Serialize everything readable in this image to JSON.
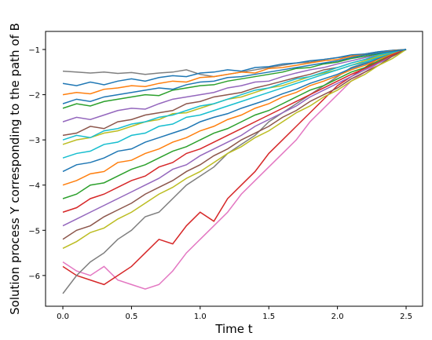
{
  "chart_data": {
    "type": "line",
    "xlabel": "Time t",
    "ylabel": "Solution process Y corresponding to the path of B",
    "xlim": [
      -0.126,
      2.62
    ],
    "ylim": [
      -6.68,
      -0.6
    ],
    "xticks": [
      {
        "value": 0,
        "label": "0.0"
      },
      0.5,
      {
        "value": 1,
        "label": "1.0"
      },
      1.5,
      {
        "value": 2,
        "label": "2.0"
      },
      2.5
    ],
    "yticks": [
      {
        "value": -6,
        "label": "−6"
      },
      {
        "value": -5,
        "label": "−5"
      },
      {
        "value": -4,
        "label": "−4"
      },
      {
        "value": -3,
        "label": "−3"
      },
      {
        "value": -2,
        "label": "−2"
      },
      {
        "value": -1,
        "label": "−1"
      }
    ],
    "x": [
      0,
      0.1,
      0.2,
      0.3,
      0.4,
      0.5,
      0.6,
      0.7,
      0.8,
      0.9,
      1.0,
      1.1,
      1.2,
      1.3,
      1.4,
      1.5,
      1.6,
      1.7,
      1.8,
      1.9,
      2.0,
      2.1,
      2.2,
      2.3,
      2.4,
      2.5
    ],
    "series": [
      {
        "color": "#7f7f7f",
        "values": [
          -1.48,
          -1.5,
          -1.52,
          -1.5,
          -1.53,
          -1.51,
          -1.55,
          -1.52,
          -1.5,
          -1.45,
          -1.55,
          -1.6,
          -1.55,
          -1.5,
          -1.45,
          -1.4,
          -1.35,
          -1.3,
          -1.28,
          -1.22,
          -1.18,
          -1.15,
          -1.1,
          -1.05,
          -1.02,
          -1.0
        ]
      },
      {
        "color": "#e377c2",
        "values": [
          -5.7,
          -5.9,
          -6.0,
          -5.8,
          -6.1,
          -6.2,
          -6.3,
          -6.2,
          -5.9,
          -5.5,
          -5.2,
          -4.9,
          -4.6,
          -4.2,
          -3.9,
          -3.6,
          -3.3,
          -3.0,
          -2.6,
          -2.3,
          -2.0,
          -1.7,
          -1.5,
          -1.3,
          -1.1,
          -1.0
        ]
      },
      {
        "color": "#d62728",
        "values": [
          -5.8,
          -6.0,
          -6.1,
          -6.2,
          -6.0,
          -5.8,
          -5.5,
          -5.2,
          -5.3,
          -4.9,
          -4.6,
          -4.8,
          -4.3,
          -4.0,
          -3.7,
          -3.3,
          -3.0,
          -2.7,
          -2.4,
          -2.1,
          -1.8,
          -1.6,
          -1.4,
          -1.2,
          -1.1,
          -1.0
        ]
      },
      {
        "color": "#7f7f7f",
        "values": [
          -6.4,
          -6.0,
          -5.7,
          -5.5,
          -5.2,
          -5.0,
          -4.7,
          -4.6,
          -4.3,
          -4.0,
          -3.8,
          -3.6,
          -3.3,
          -3.1,
          -2.9,
          -2.6,
          -2.4,
          -2.2,
          -2.0,
          -1.8,
          -1.6,
          -1.4,
          -1.3,
          -1.15,
          -1.05,
          -1.0
        ]
      },
      {
        "color": "#1f77b4",
        "values": [
          -1.75,
          -1.8,
          -1.72,
          -1.78,
          -1.7,
          -1.65,
          -1.7,
          -1.62,
          -1.58,
          -1.6,
          -1.52,
          -1.5,
          -1.45,
          -1.48,
          -1.4,
          -1.38,
          -1.32,
          -1.3,
          -1.25,
          -1.22,
          -1.18,
          -1.12,
          -1.1,
          -1.05,
          -1.02,
          -1.0
        ]
      },
      {
        "color": "#ff7f0e",
        "values": [
          -2.0,
          -1.95,
          -1.98,
          -1.88,
          -1.85,
          -1.8,
          -1.82,
          -1.75,
          -1.7,
          -1.72,
          -1.62,
          -1.6,
          -1.55,
          -1.5,
          -1.52,
          -1.42,
          -1.4,
          -1.35,
          -1.3,
          -1.25,
          -1.22,
          -1.15,
          -1.12,
          -1.08,
          -1.03,
          -1.0
        ]
      },
      {
        "color": "#2ca02c",
        "values": [
          -2.3,
          -2.2,
          -2.25,
          -2.15,
          -2.1,
          -2.05,
          -2.0,
          -2.02,
          -1.9,
          -1.85,
          -1.8,
          -1.78,
          -1.7,
          -1.65,
          -1.6,
          -1.55,
          -1.5,
          -1.42,
          -1.4,
          -1.32,
          -1.28,
          -1.2,
          -1.15,
          -1.1,
          -1.04,
          -1.0
        ]
      },
      {
        "color": "#9467bd",
        "values": [
          -2.6,
          -2.5,
          -2.55,
          -2.45,
          -2.35,
          -2.3,
          -2.32,
          -2.2,
          -2.1,
          -2.05,
          -2.0,
          -1.95,
          -1.85,
          -1.8,
          -1.72,
          -1.7,
          -1.6,
          -1.52,
          -1.45,
          -1.4,
          -1.32,
          -1.25,
          -1.18,
          -1.12,
          -1.05,
          -1.0
        ]
      },
      {
        "color": "#8c564b",
        "values": [
          -2.9,
          -2.85,
          -2.7,
          -2.75,
          -2.6,
          -2.55,
          -2.45,
          -2.4,
          -2.35,
          -2.2,
          -2.15,
          -2.05,
          -2.0,
          -1.95,
          -1.85,
          -1.78,
          -1.7,
          -1.62,
          -1.55,
          -1.45,
          -1.4,
          -1.3,
          -1.22,
          -1.15,
          -1.06,
          -1.0
        ]
      },
      {
        "color": "#bcbd22",
        "values": [
          -3.1,
          -3.0,
          -2.95,
          -2.85,
          -2.8,
          -2.7,
          -2.6,
          -2.55,
          -2.42,
          -2.4,
          -2.3,
          -2.2,
          -2.1,
          -2.05,
          -1.95,
          -1.85,
          -1.8,
          -1.7,
          -1.6,
          -1.52,
          -1.45,
          -1.35,
          -1.25,
          -1.15,
          -1.08,
          -1.0
        ]
      },
      {
        "color": "#17becf",
        "values": [
          -3.4,
          -3.3,
          -3.25,
          -3.1,
          -3.05,
          -2.9,
          -2.85,
          -2.7,
          -2.65,
          -2.5,
          -2.45,
          -2.35,
          -2.25,
          -2.15,
          -2.05,
          -1.95,
          -1.85,
          -1.75,
          -1.65,
          -1.55,
          -1.45,
          -1.35,
          -1.28,
          -1.18,
          -1.08,
          -1.0
        ]
      },
      {
        "color": "#1f77b4",
        "values": [
          -3.7,
          -3.55,
          -3.5,
          -3.4,
          -3.25,
          -3.2,
          -3.05,
          -2.95,
          -2.85,
          -2.75,
          -2.6,
          -2.5,
          -2.42,
          -2.3,
          -2.2,
          -2.1,
          -1.98,
          -1.88,
          -1.75,
          -1.65,
          -1.55,
          -1.42,
          -1.32,
          -1.2,
          -1.1,
          -1.0
        ]
      },
      {
        "color": "#ff7f0e",
        "values": [
          -4.0,
          -3.9,
          -3.75,
          -3.7,
          -3.5,
          -3.45,
          -3.3,
          -3.2,
          -3.05,
          -2.95,
          -2.8,
          -2.7,
          -2.55,
          -2.45,
          -2.3,
          -2.2,
          -2.05,
          -1.95,
          -1.8,
          -1.7,
          -1.58,
          -1.45,
          -1.35,
          -1.22,
          -1.1,
          -1.0
        ]
      },
      {
        "color": "#2ca02c",
        "values": [
          -4.3,
          -4.2,
          -4.0,
          -3.95,
          -3.8,
          -3.65,
          -3.55,
          -3.4,
          -3.25,
          -3.15,
          -3.0,
          -2.85,
          -2.75,
          -2.6,
          -2.45,
          -2.35,
          -2.2,
          -2.05,
          -1.9,
          -1.8,
          -1.65,
          -1.5,
          -1.4,
          -1.25,
          -1.12,
          -1.0
        ]
      },
      {
        "color": "#d62728",
        "values": [
          -4.6,
          -4.5,
          -4.3,
          -4.2,
          -4.05,
          -3.9,
          -3.8,
          -3.6,
          -3.5,
          -3.3,
          -3.2,
          -3.05,
          -2.9,
          -2.75,
          -2.6,
          -2.45,
          -2.3,
          -2.15,
          -2.0,
          -1.85,
          -1.7,
          -1.55,
          -1.42,
          -1.28,
          -1.12,
          -1.0
        ]
      },
      {
        "color": "#9467bd",
        "values": [
          -4.9,
          -4.75,
          -4.6,
          -4.45,
          -4.3,
          -4.15,
          -4.0,
          -3.85,
          -3.65,
          -3.55,
          -3.35,
          -3.2,
          -3.05,
          -2.9,
          -2.7,
          -2.55,
          -2.4,
          -2.25,
          -2.05,
          -1.9,
          -1.75,
          -1.6,
          -1.45,
          -1.3,
          -1.15,
          -1.0
        ]
      },
      {
        "color": "#8c564b",
        "values": [
          -5.2,
          -5.0,
          -4.9,
          -4.7,
          -4.55,
          -4.4,
          -4.2,
          -4.05,
          -3.9,
          -3.7,
          -3.55,
          -3.35,
          -3.2,
          -3.0,
          -2.85,
          -2.7,
          -2.5,
          -2.35,
          -2.15,
          -2.0,
          -1.85,
          -1.65,
          -1.5,
          -1.35,
          -1.15,
          -1.0
        ]
      },
      {
        "color": "#bcbd22",
        "values": [
          -5.4,
          -5.25,
          -5.05,
          -4.95,
          -4.75,
          -4.6,
          -4.4,
          -4.2,
          -4.05,
          -3.85,
          -3.7,
          -3.5,
          -3.3,
          -3.15,
          -2.95,
          -2.8,
          -2.6,
          -2.4,
          -2.25,
          -2.05,
          -1.9,
          -1.7,
          -1.55,
          -1.35,
          -1.2,
          -1.0
        ]
      },
      {
        "color": "#17becf",
        "values": [
          -3.0,
          -2.9,
          -2.95,
          -2.8,
          -2.75,
          -2.65,
          -2.6,
          -2.5,
          -2.45,
          -2.35,
          -2.25,
          -2.2,
          -2.1,
          -2.0,
          -1.9,
          -1.85,
          -1.75,
          -1.65,
          -1.6,
          -1.5,
          -1.4,
          -1.3,
          -1.22,
          -1.12,
          -1.05,
          -1.0
        ]
      },
      {
        "color": "#1f77b4",
        "values": [
          -2.2,
          -2.1,
          -2.15,
          -2.05,
          -2.0,
          -1.95,
          -1.9,
          -1.85,
          -1.88,
          -1.78,
          -1.72,
          -1.7,
          -1.62,
          -1.6,
          -1.55,
          -1.5,
          -1.45,
          -1.4,
          -1.35,
          -1.3,
          -1.25,
          -1.18,
          -1.12,
          -1.08,
          -1.04,
          -1.0
        ]
      }
    ]
  }
}
